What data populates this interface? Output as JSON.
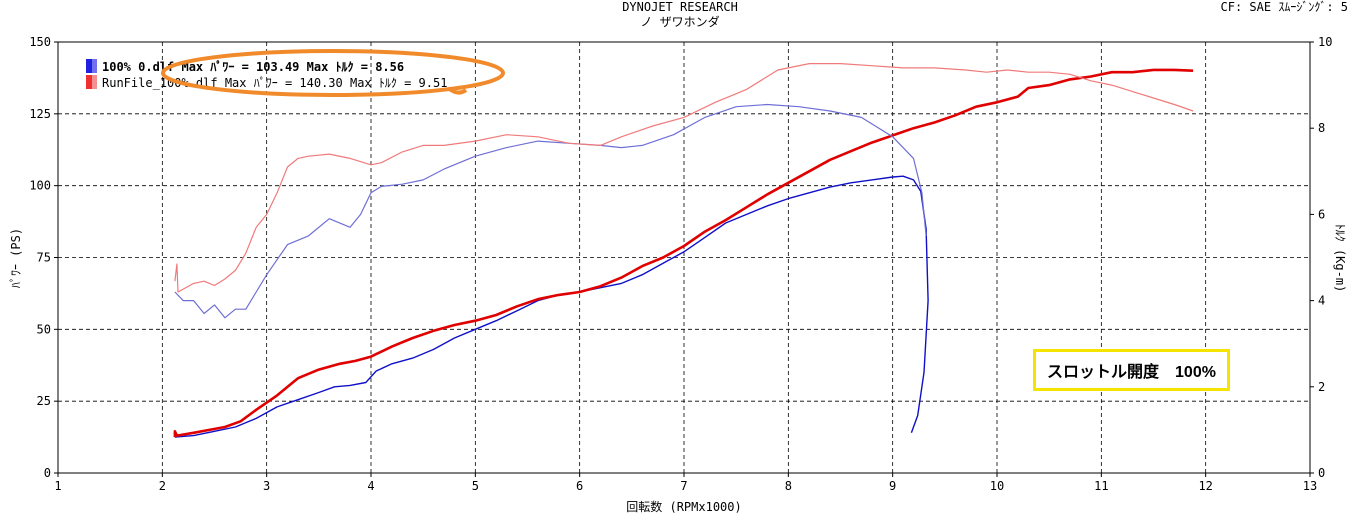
{
  "header": {
    "title": "DYNOJET  RESEARCH",
    "subtitle": "ノ ザワホンダ",
    "settings": "CF: SAE  ｽﾑｰｼﾞﾝｸﾞ: 5"
  },
  "legend": {
    "items": [
      {
        "text": "100% 0.dlf Max ﾊﾟﾜｰ = 103.49   Max ﾄﾙｸ = 8.56",
        "color": "#2020e0"
      },
      {
        "text": "RunFile_100% dlf Max ﾊﾟﾜｰ = 140.30   Max ﾄﾙｸ = 9.51",
        "color": "#ee3030"
      }
    ]
  },
  "annotation": {
    "throttle_label": "スロットル開度　100%",
    "highlight_color": "#f5e400",
    "oval_color": "#f08a2a"
  },
  "chart_data": {
    "type": "line",
    "xlabel": "回転数 (RPMx1000)",
    "ylabel_left": "ﾊﾟﾜｰ (PS)",
    "ylabel_right": "ﾄﾙｸ (Kg-m)",
    "xlim": [
      1,
      13
    ],
    "ylim_left": [
      0,
      150
    ],
    "ylim_right": [
      0,
      10
    ],
    "x_ticks": [
      "1",
      "2",
      "3",
      "4",
      "5",
      "6",
      "7",
      "8",
      "9",
      "10",
      "11",
      "12",
      "13"
    ],
    "y_ticks_left": [
      "0",
      "25",
      "50",
      "75",
      "100",
      "125",
      "150"
    ],
    "y_ticks_right": [
      "0",
      "2",
      "4",
      "6",
      "8",
      "10"
    ],
    "grid": true,
    "series": [
      {
        "name": "100% 0.dlf",
        "kind": "power",
        "axis": "left",
        "color": "#1010c8",
        "points": [
          [
            2.12,
            12.5
          ],
          [
            2.3,
            13
          ],
          [
            2.5,
            14.5
          ],
          [
            2.7,
            16
          ],
          [
            2.9,
            19
          ],
          [
            3.1,
            23
          ],
          [
            3.3,
            25.5
          ],
          [
            3.5,
            28
          ],
          [
            3.65,
            30
          ],
          [
            3.8,
            30.5
          ],
          [
            3.95,
            31.5
          ],
          [
            4.05,
            35.5
          ],
          [
            4.2,
            38
          ],
          [
            4.4,
            40
          ],
          [
            4.6,
            43
          ],
          [
            4.8,
            47
          ],
          [
            5.0,
            50
          ],
          [
            5.2,
            53
          ],
          [
            5.4,
            56.5
          ],
          [
            5.6,
            60
          ],
          [
            5.8,
            62
          ],
          [
            6.0,
            63
          ],
          [
            6.2,
            64.5
          ],
          [
            6.4,
            66
          ],
          [
            6.6,
            69
          ],
          [
            6.8,
            73
          ],
          [
            7.0,
            77
          ],
          [
            7.2,
            82
          ],
          [
            7.4,
            87
          ],
          [
            7.6,
            90
          ],
          [
            7.8,
            93
          ],
          [
            8.0,
            95.5
          ],
          [
            8.2,
            97.5
          ],
          [
            8.4,
            99.5
          ],
          [
            8.6,
            101
          ],
          [
            8.8,
            102
          ],
          [
            9.0,
            103
          ],
          [
            9.1,
            103.3
          ],
          [
            9.2,
            102
          ],
          [
            9.27,
            98
          ],
          [
            9.32,
            85
          ],
          [
            9.34,
            60
          ],
          [
            9.3,
            35
          ],
          [
            9.24,
            20
          ],
          [
            9.18,
            14
          ]
        ]
      },
      {
        "name": "RunFile_100% dlf",
        "kind": "power",
        "axis": "left",
        "color": "#e00000",
        "points": [
          [
            2.12,
            12.5
          ],
          [
            2.12,
            14.5
          ],
          [
            2.14,
            13
          ],
          [
            2.3,
            14
          ],
          [
            2.45,
            15
          ],
          [
            2.6,
            16
          ],
          [
            2.75,
            18
          ],
          [
            2.9,
            22
          ],
          [
            3.1,
            27
          ],
          [
            3.3,
            33
          ],
          [
            3.5,
            36
          ],
          [
            3.7,
            38
          ],
          [
            3.85,
            39
          ],
          [
            4.0,
            40.5
          ],
          [
            4.2,
            44
          ],
          [
            4.4,
            47
          ],
          [
            4.6,
            49.5
          ],
          [
            4.8,
            51.5
          ],
          [
            5.0,
            53
          ],
          [
            5.2,
            55
          ],
          [
            5.4,
            58
          ],
          [
            5.6,
            60.5
          ],
          [
            5.8,
            62
          ],
          [
            6.0,
            63
          ],
          [
            6.2,
            65
          ],
          [
            6.4,
            68
          ],
          [
            6.6,
            72
          ],
          [
            6.8,
            75
          ],
          [
            7.0,
            79
          ],
          [
            7.2,
            84
          ],
          [
            7.4,
            88
          ],
          [
            7.6,
            92.5
          ],
          [
            7.8,
            97
          ],
          [
            8.0,
            101
          ],
          [
            8.2,
            105
          ],
          [
            8.4,
            109
          ],
          [
            8.6,
            112
          ],
          [
            8.8,
            115
          ],
          [
            9.0,
            117.5
          ],
          [
            9.2,
            120
          ],
          [
            9.4,
            122
          ],
          [
            9.6,
            124.5
          ],
          [
            9.8,
            127.5
          ],
          [
            10.0,
            129
          ],
          [
            10.2,
            131
          ],
          [
            10.3,
            134
          ],
          [
            10.5,
            135
          ],
          [
            10.7,
            137
          ],
          [
            10.9,
            138
          ],
          [
            11.1,
            139.5
          ],
          [
            11.3,
            139.5
          ],
          [
            11.5,
            140.3
          ],
          [
            11.7,
            140.3
          ],
          [
            11.88,
            140
          ]
        ]
      },
      {
        "name": "100% 0.dlf",
        "kind": "torque",
        "axis": "right",
        "color": "#6f6fd6",
        "points": [
          [
            2.12,
            4.2
          ],
          [
            2.2,
            4.0
          ],
          [
            2.3,
            4.0
          ],
          [
            2.4,
            3.7
          ],
          [
            2.5,
            3.9
          ],
          [
            2.6,
            3.6
          ],
          [
            2.7,
            3.8
          ],
          [
            2.8,
            3.8
          ],
          [
            2.9,
            4.2
          ],
          [
            3.0,
            4.6
          ],
          [
            3.2,
            5.3
          ],
          [
            3.4,
            5.5
          ],
          [
            3.6,
            5.9
          ],
          [
            3.8,
            5.7
          ],
          [
            3.9,
            6.0
          ],
          [
            4.0,
            6.5
          ],
          [
            4.1,
            6.65
          ],
          [
            4.3,
            6.7
          ],
          [
            4.5,
            6.8
          ],
          [
            4.7,
            7.05
          ],
          [
            5.0,
            7.35
          ],
          [
            5.3,
            7.55
          ],
          [
            5.6,
            7.7
          ],
          [
            5.9,
            7.65
          ],
          [
            6.2,
            7.6
          ],
          [
            6.4,
            7.55
          ],
          [
            6.6,
            7.6
          ],
          [
            6.9,
            7.85
          ],
          [
            7.2,
            8.25
          ],
          [
            7.5,
            8.5
          ],
          [
            7.8,
            8.55
          ],
          [
            8.1,
            8.5
          ],
          [
            8.4,
            8.4
          ],
          [
            8.7,
            8.25
          ],
          [
            9.0,
            7.8
          ],
          [
            9.2,
            7.3
          ],
          [
            9.28,
            6.5
          ],
          [
            9.32,
            5.5
          ]
        ]
      },
      {
        "name": "RunFile_100% dlf",
        "kind": "torque",
        "axis": "right",
        "color": "#f07a7a",
        "points": [
          [
            2.12,
            4.45
          ],
          [
            2.14,
            4.85
          ],
          [
            2.15,
            4.2
          ],
          [
            2.3,
            4.4
          ],
          [
            2.4,
            4.45
          ],
          [
            2.5,
            4.35
          ],
          [
            2.6,
            4.5
          ],
          [
            2.7,
            4.7
          ],
          [
            2.8,
            5.1
          ],
          [
            2.9,
            5.7
          ],
          [
            3.0,
            6.0
          ],
          [
            3.1,
            6.5
          ],
          [
            3.2,
            7.1
          ],
          [
            3.3,
            7.3
          ],
          [
            3.4,
            7.35
          ],
          [
            3.6,
            7.4
          ],
          [
            3.8,
            7.3
          ],
          [
            4.0,
            7.15
          ],
          [
            4.1,
            7.2
          ],
          [
            4.3,
            7.45
          ],
          [
            4.5,
            7.6
          ],
          [
            4.7,
            7.6
          ],
          [
            5.0,
            7.7
          ],
          [
            5.3,
            7.85
          ],
          [
            5.6,
            7.8
          ],
          [
            5.9,
            7.65
          ],
          [
            6.2,
            7.6
          ],
          [
            6.4,
            7.8
          ],
          [
            6.7,
            8.05
          ],
          [
            7.0,
            8.25
          ],
          [
            7.3,
            8.6
          ],
          [
            7.6,
            8.9
          ],
          [
            7.9,
            9.35
          ],
          [
            8.2,
            9.5
          ],
          [
            8.5,
            9.5
          ],
          [
            8.8,
            9.45
          ],
          [
            9.1,
            9.4
          ],
          [
            9.4,
            9.4
          ],
          [
            9.7,
            9.35
          ],
          [
            9.9,
            9.3
          ],
          [
            10.1,
            9.35
          ],
          [
            10.3,
            9.3
          ],
          [
            10.5,
            9.3
          ],
          [
            10.7,
            9.25
          ],
          [
            10.9,
            9.1
          ],
          [
            11.1,
            9.0
          ],
          [
            11.3,
            8.85
          ],
          [
            11.5,
            8.7
          ],
          [
            11.7,
            8.55
          ],
          [
            11.88,
            8.4
          ]
        ]
      }
    ]
  }
}
